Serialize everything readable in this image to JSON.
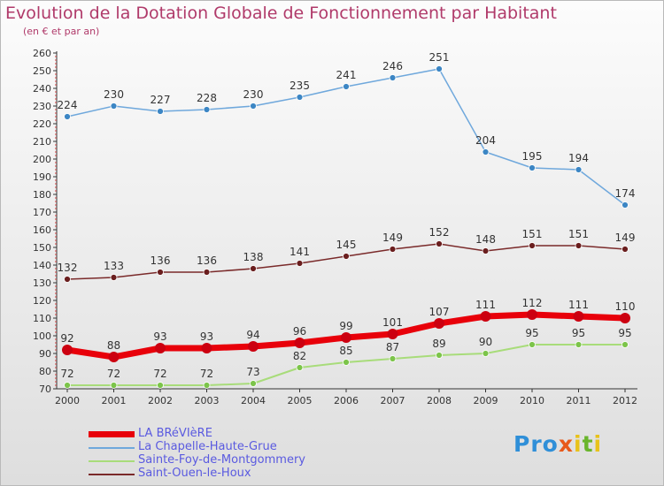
{
  "header": {
    "title": "Evolution de la Dotation Globale de Fonctionnement par Habitant",
    "subtitle": "(en € et par an)"
  },
  "logo": {
    "text": "Proxiti",
    "colors": [
      "#2f8fd8",
      "#e8591a",
      "#69b52c",
      "#e8c21a"
    ]
  },
  "chart_data": {
    "type": "line",
    "title": "Evolution de la Dotation Globale de Fonctionnement par Habitant",
    "subtitle": "(en € et par an)",
    "x": [
      "2000",
      "2001",
      "2002",
      "2003",
      "2004",
      "2005",
      "2006",
      "2007",
      "2008",
      "2009",
      "2010",
      "2011",
      "2012"
    ],
    "ylim": [
      70,
      260
    ],
    "ytick_step": 10,
    "grid": false,
    "legend_position": "bottom-left",
    "series": [
      {
        "name": "LA BRéVIèRE",
        "color": "#e8000a",
        "marker": "#cc0010",
        "width": 7,
        "values": [
          92,
          88,
          93,
          93,
          94,
          96,
          99,
          101,
          107,
          111,
          112,
          111,
          110
        ]
      },
      {
        "name": "La Chapelle-Haute-Grue",
        "color": "#6fa8dc",
        "marker": "#3c86c4",
        "width": 1.5,
        "values": [
          224,
          230,
          227,
          228,
          230,
          235,
          241,
          246,
          251,
          204,
          195,
          194,
          174
        ]
      },
      {
        "name": "Sainte-Foy-de-Montgommery",
        "color": "#a8dc7a",
        "marker": "#7cc44a",
        "width": 2,
        "values": [
          72,
          72,
          72,
          72,
          73,
          82,
          85,
          87,
          89,
          90,
          95,
          95,
          95
        ]
      },
      {
        "name": "Saint-Ouen-le-Houx",
        "color": "#7a2a2a",
        "marker": "#6a1e1e",
        "width": 1.5,
        "values": [
          132,
          133,
          136,
          136,
          138,
          141,
          145,
          149,
          152,
          148,
          151,
          151,
          149
        ]
      }
    ]
  }
}
